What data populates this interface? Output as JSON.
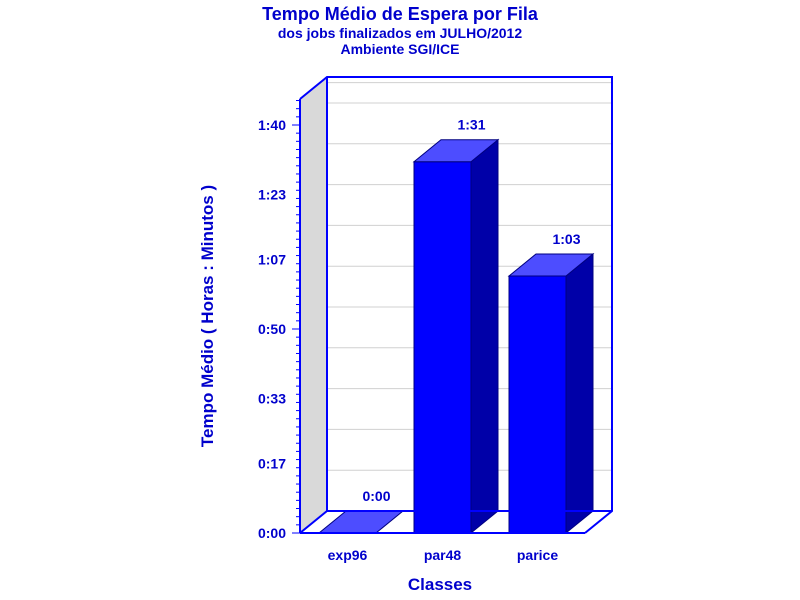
{
  "chart_data": {
    "type": "bar",
    "title": "Tempo Médio de Espera por Fila",
    "subtitle_lines": [
      "dos jobs finalizados em JULHO/2012",
      "Ambiente SGI/ICE"
    ],
    "xlabel": "Classes",
    "ylabel": "Tempo Médio ( Horas : Minutos )",
    "categories": [
      "exp96",
      "par48",
      "parice"
    ],
    "values": [
      0,
      91,
      63
    ],
    "value_labels": [
      "0:00",
      "1:31",
      "1:03"
    ],
    "ylim": [
      0,
      100
    ],
    "yticks": [
      0,
      17,
      33,
      50,
      67,
      83,
      100
    ],
    "ytick_labels": [
      "0:00",
      "0:17",
      "0:33",
      "0:50",
      "1:07",
      "1:23",
      "1:40"
    ],
    "grid": true,
    "three_d": true,
    "colors": {
      "front": "#0000ff",
      "top": "#4d4dff",
      "side": "#0000a8",
      "text": "#0000cc",
      "wall": "#d9d9d9",
      "frame": "#0000ff",
      "grid": "#d0d0d0"
    }
  }
}
